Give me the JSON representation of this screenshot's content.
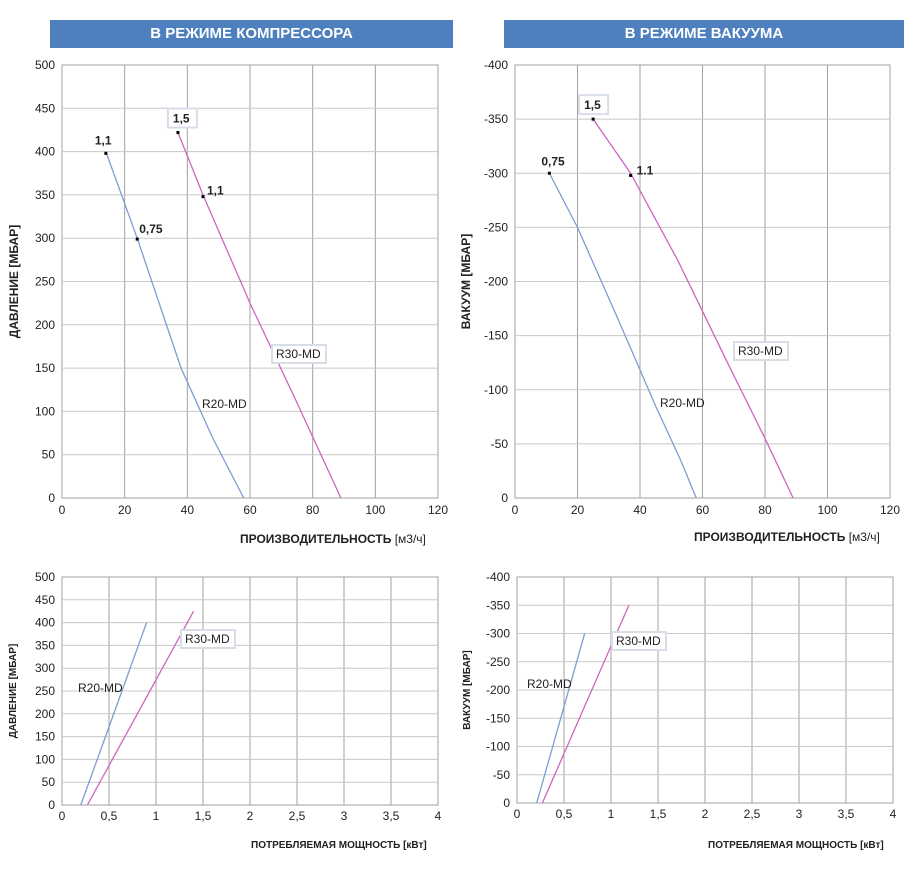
{
  "banners": {
    "compressor": "В РЕЖИМЕ КОМПРЕССОРА",
    "vacuum": "В РЕЖИМЕ ВАКУУМА"
  },
  "colors": {
    "banner": "#4e80bf",
    "r20": "#7f9bd4",
    "r30": "#cc66c2",
    "grid": "#a0a0a0"
  },
  "chart_data": [
    {
      "id": "compressor_flow",
      "type": "line",
      "title": "В РЕЖИМЕ КОМПРЕССОРА",
      "xlabel": "ПРОИЗВОДИТЕЛЬНОСТЬ",
      "xunit": "[м3/ч]",
      "ylabel": "ДАВЛЕНИЕ [МБАР]",
      "xlim": [
        0,
        120
      ],
      "ylim": [
        0,
        500
      ],
      "xticks": [
        "0",
        "20",
        "40",
        "60",
        "80",
        "100",
        "120"
      ],
      "yticks": [
        "0",
        "50",
        "100",
        "150",
        "200",
        "250",
        "300",
        "350",
        "400",
        "450",
        "500"
      ],
      "series": [
        {
          "name": "R20-MD",
          "x": [
            14,
            24,
            38,
            48,
            58
          ],
          "y": [
            400,
            300,
            150,
            70,
            0
          ]
        },
        {
          "name": "R30-MD",
          "x": [
            37,
            45,
            60,
            75,
            89
          ],
          "y": [
            422,
            350,
            225,
            110,
            0
          ]
        }
      ],
      "points": [
        {
          "label": "1,1",
          "x": 14,
          "y": 398
        },
        {
          "label": "0,75",
          "x": 24,
          "y": 299
        },
        {
          "label": "1,5",
          "x": 37,
          "y": 422
        },
        {
          "label": "1,1",
          "x": 45,
          "y": 348
        }
      ]
    },
    {
      "id": "vacuum_flow",
      "type": "line",
      "title": "В РЕЖИМЕ ВАКУУМА",
      "xlabel": "ПРОИЗВОДИТЕЛЬНОСТЬ",
      "xunit": "[м3/ч]",
      "ylabel": "ВАКУУМ [МБАР]",
      "xlim": [
        0,
        120
      ],
      "ylim": [
        0,
        -400
      ],
      "xticks": [
        "0",
        "20",
        "40",
        "60",
        "80",
        "100",
        "120"
      ],
      "yticks": [
        "0",
        "-50",
        "-100",
        "-150",
        "-200",
        "-250",
        "-300",
        "-350",
        "-400"
      ],
      "series": [
        {
          "name": "R20-MD",
          "x": [
            11,
            20,
            33,
            45,
            53,
            58
          ],
          "y": [
            -300,
            -250,
            -165,
            -85,
            -35,
            0
          ]
        },
        {
          "name": "R30-MD",
          "x": [
            25,
            37,
            52,
            68,
            80,
            89
          ],
          "y": [
            -350,
            -300,
            -220,
            -125,
            -55,
            0
          ]
        }
      ],
      "points": [
        {
          "label": "0,75",
          "x": 11,
          "y": -300
        },
        {
          "label": "1,5",
          "x": 25,
          "y": -350
        },
        {
          "label": "1.1",
          "x": 37,
          "y": -298
        }
      ]
    },
    {
      "id": "compressor_power",
      "type": "line",
      "xlabel": "ПОТРЕБЛЯЕМАЯ МОЩНОСТЬ [кВт]",
      "ylabel": "ДАВЛЕНИЕ [МБАР]",
      "xlim": [
        0,
        4
      ],
      "ylim": [
        0,
        500
      ],
      "xticks": [
        "0",
        "0,5",
        "1",
        "1,5",
        "2",
        "2,5",
        "3",
        "3,5",
        "4"
      ],
      "yticks": [
        "0",
        "50",
        "100",
        "150",
        "200",
        "250",
        "300",
        "350",
        "400",
        "450",
        "500"
      ],
      "series": [
        {
          "name": "R20-MD",
          "x": [
            0.2,
            0.9
          ],
          "y": [
            0,
            400
          ]
        },
        {
          "name": "R30-MD",
          "x": [
            0.27,
            1.4
          ],
          "y": [
            0,
            425
          ]
        }
      ]
    },
    {
      "id": "vacuum_power",
      "type": "line",
      "xlabel": "ПОТРЕБЛЯЕМАЯ МОЩНОСТЬ [кВт]",
      "ylabel": "ВАКУУМ [МБАР]",
      "xlim": [
        0,
        4
      ],
      "ylim": [
        0,
        -400
      ],
      "xticks": [
        "0",
        "0,5",
        "1",
        "1,5",
        "2",
        "2,5",
        "3",
        "3,5",
        "4"
      ],
      "yticks": [
        "0",
        "-50",
        "-100",
        "-150",
        "-200",
        "-250",
        "-300",
        "-350",
        "-400"
      ],
      "series": [
        {
          "name": "R20-MD",
          "x": [
            0.21,
            0.72
          ],
          "y": [
            0,
            -300
          ]
        },
        {
          "name": "R30-MD",
          "x": [
            0.27,
            1.19
          ],
          "y": [
            0,
            -350
          ]
        }
      ]
    }
  ]
}
